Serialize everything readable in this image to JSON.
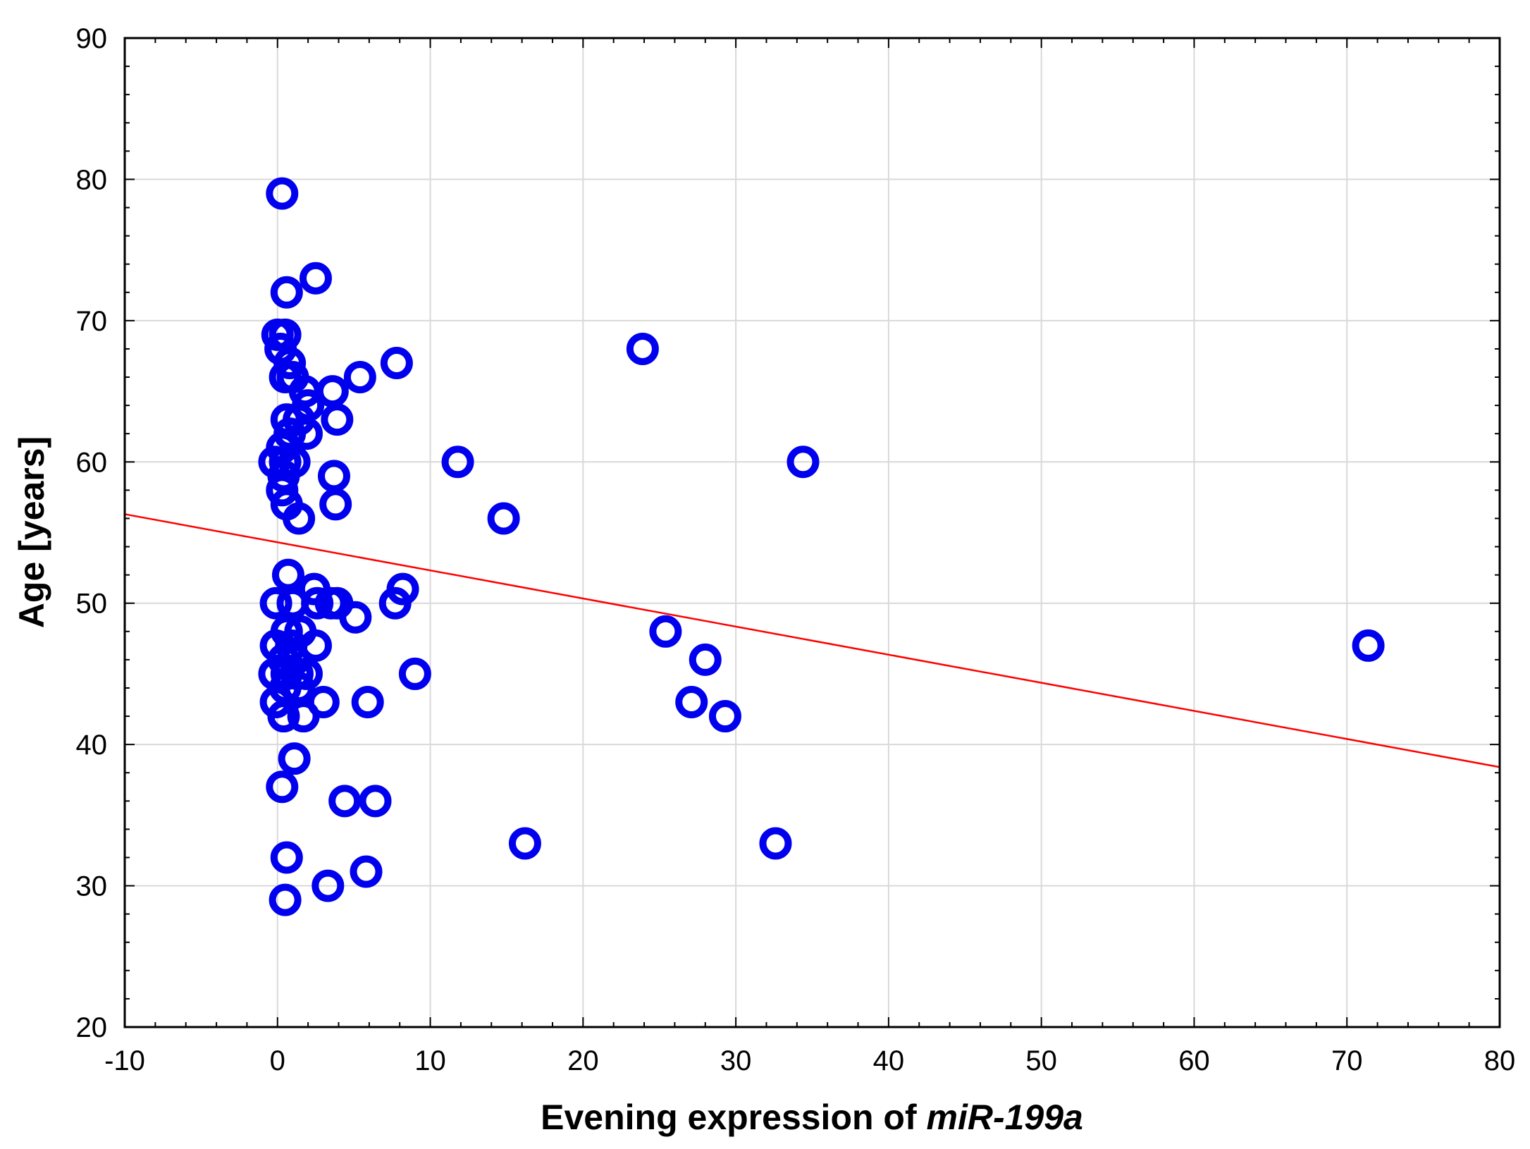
{
  "chart_data": {
    "type": "scatter",
    "xlabel_prefix": "Evening expression of ",
    "xlabel_italic": "miR-199a",
    "ylabel": "Age [years]",
    "xlim": [
      -10,
      80
    ],
    "ylim": [
      20,
      90
    ],
    "x_ticks": [
      -10,
      0,
      10,
      20,
      30,
      40,
      50,
      60,
      70,
      80
    ],
    "y_ticks": [
      20,
      30,
      40,
      50,
      60,
      70,
      80,
      90
    ],
    "grid": true,
    "marker_color": "#0000EE",
    "line_color": "#FF0000",
    "trend_line": {
      "x": [
        -10,
        80
      ],
      "y": [
        56.3,
        38.4
      ]
    },
    "points": [
      {
        "x": 0.3,
        "y": 79
      },
      {
        "x": 0.6,
        "y": 72
      },
      {
        "x": 2.5,
        "y": 73
      },
      {
        "x": 0.0,
        "y": 69
      },
      {
        "x": 0.5,
        "y": 69
      },
      {
        "x": 0.2,
        "y": 68
      },
      {
        "x": 0.8,
        "y": 67
      },
      {
        "x": 0.5,
        "y": 66
      },
      {
        "x": 1.0,
        "y": 66
      },
      {
        "x": 7.8,
        "y": 67
      },
      {
        "x": 5.4,
        "y": 66
      },
      {
        "x": 1.8,
        "y": 65
      },
      {
        "x": 3.6,
        "y": 65
      },
      {
        "x": 2.0,
        "y": 64
      },
      {
        "x": 0.6,
        "y": 63
      },
      {
        "x": 1.4,
        "y": 63
      },
      {
        "x": 3.9,
        "y": 63
      },
      {
        "x": 0.8,
        "y": 62
      },
      {
        "x": 1.9,
        "y": 62
      },
      {
        "x": 0.3,
        "y": 61
      },
      {
        "x": 0.5,
        "y": 60
      },
      {
        "x": -0.2,
        "y": 60
      },
      {
        "x": 1.1,
        "y": 60
      },
      {
        "x": 0.4,
        "y": 59
      },
      {
        "x": 3.7,
        "y": 59
      },
      {
        "x": 0.3,
        "y": 58
      },
      {
        "x": 0.6,
        "y": 57
      },
      {
        "x": 3.8,
        "y": 57
      },
      {
        "x": 1.4,
        "y": 56
      },
      {
        "x": 11.8,
        "y": 60
      },
      {
        "x": 14.8,
        "y": 56
      },
      {
        "x": 23.9,
        "y": 68
      },
      {
        "x": 34.4,
        "y": 60
      },
      {
        "x": 0.7,
        "y": 52
      },
      {
        "x": 2.4,
        "y": 51
      },
      {
        "x": 8.2,
        "y": 51
      },
      {
        "x": -0.1,
        "y": 50
      },
      {
        "x": 1.0,
        "y": 50
      },
      {
        "x": 2.6,
        "y": 50
      },
      {
        "x": 3.5,
        "y": 50
      },
      {
        "x": 3.9,
        "y": 50
      },
      {
        "x": 7.7,
        "y": 50
      },
      {
        "x": 5.1,
        "y": 49
      },
      {
        "x": 0.6,
        "y": 48
      },
      {
        "x": 1.5,
        "y": 48
      },
      {
        "x": -0.1,
        "y": 47
      },
      {
        "x": 0.9,
        "y": 47
      },
      {
        "x": 2.5,
        "y": 47
      },
      {
        "x": 0.4,
        "y": 46
      },
      {
        "x": 1.1,
        "y": 46
      },
      {
        "x": -0.2,
        "y": 45
      },
      {
        "x": 0.6,
        "y": 45
      },
      {
        "x": 1.3,
        "y": 45
      },
      {
        "x": 1.9,
        "y": 45
      },
      {
        "x": 9.0,
        "y": 45
      },
      {
        "x": 0.5,
        "y": 44
      },
      {
        "x": 1.4,
        "y": 44
      },
      {
        "x": -0.1,
        "y": 43
      },
      {
        "x": 3.0,
        "y": 43
      },
      {
        "x": 5.9,
        "y": 43
      },
      {
        "x": 0.4,
        "y": 42
      },
      {
        "x": 1.7,
        "y": 42
      },
      {
        "x": 25.4,
        "y": 48
      },
      {
        "x": 28.0,
        "y": 46
      },
      {
        "x": 27.1,
        "y": 43
      },
      {
        "x": 29.3,
        "y": 42
      },
      {
        "x": 71.4,
        "y": 47
      },
      {
        "x": 1.1,
        "y": 39
      },
      {
        "x": 0.3,
        "y": 37
      },
      {
        "x": 4.4,
        "y": 36
      },
      {
        "x": 6.4,
        "y": 36
      },
      {
        "x": 16.2,
        "y": 33
      },
      {
        "x": 32.6,
        "y": 33
      },
      {
        "x": 0.6,
        "y": 32
      },
      {
        "x": 5.8,
        "y": 31
      },
      {
        "x": 3.3,
        "y": 30
      },
      {
        "x": 0.5,
        "y": 29
      }
    ]
  }
}
